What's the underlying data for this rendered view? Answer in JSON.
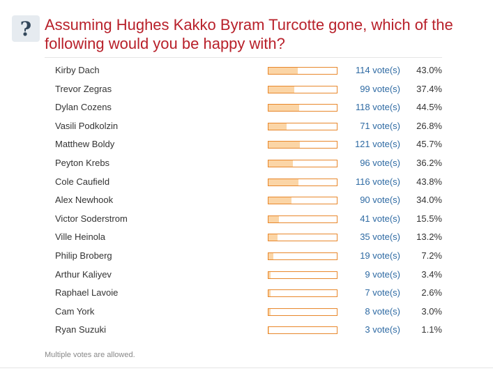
{
  "poll": {
    "icon": "question-mark-icon",
    "icon_glyph": "?",
    "title": "Assuming Hughes Kakko Byram Turcotte gone, which of the following would you be happy with?",
    "note": "Multiple votes are allowed.",
    "colors": {
      "title": "#b8202a",
      "bar_border": "#e8872b",
      "bar_fill": "#fbd5a6",
      "votes_link": "#2e6aa3"
    },
    "options": [
      {
        "name": "Kirby Dach",
        "votes": "114 vote(s)",
        "percent": "43.0%",
        "fraction": 0.43
      },
      {
        "name": "Trevor Zegras",
        "votes": "99 vote(s)",
        "percent": "37.4%",
        "fraction": 0.374
      },
      {
        "name": "Dylan Cozens",
        "votes": "118 vote(s)",
        "percent": "44.5%",
        "fraction": 0.445
      },
      {
        "name": "Vasili Podkolzin",
        "votes": "71 vote(s)",
        "percent": "26.8%",
        "fraction": 0.268
      },
      {
        "name": "Matthew Boldy",
        "votes": "121 vote(s)",
        "percent": "45.7%",
        "fraction": 0.457
      },
      {
        "name": "Peyton Krebs",
        "votes": "96 vote(s)",
        "percent": "36.2%",
        "fraction": 0.362
      },
      {
        "name": "Cole Caufield",
        "votes": "116 vote(s)",
        "percent": "43.8%",
        "fraction": 0.438
      },
      {
        "name": "Alex Newhook",
        "votes": "90 vote(s)",
        "percent": "34.0%",
        "fraction": 0.34
      },
      {
        "name": "Victor Soderstrom",
        "votes": "41 vote(s)",
        "percent": "15.5%",
        "fraction": 0.155
      },
      {
        "name": "Ville Heinola",
        "votes": "35 vote(s)",
        "percent": "13.2%",
        "fraction": 0.132
      },
      {
        "name": "Philip Broberg",
        "votes": "19 vote(s)",
        "percent": "7.2%",
        "fraction": 0.072
      },
      {
        "name": "Arthur Kaliyev",
        "votes": "9 vote(s)",
        "percent": "3.4%",
        "fraction": 0.034
      },
      {
        "name": "Raphael Lavoie",
        "votes": "7 vote(s)",
        "percent": "2.6%",
        "fraction": 0.026
      },
      {
        "name": "Cam York",
        "votes": "8 vote(s)",
        "percent": "3.0%",
        "fraction": 0.03
      },
      {
        "name": "Ryan Suzuki",
        "votes": "3 vote(s)",
        "percent": "1.1%",
        "fraction": 0.011
      }
    ]
  }
}
